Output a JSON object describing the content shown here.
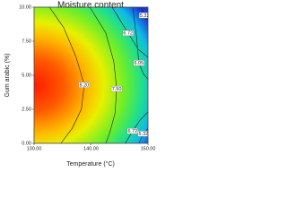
{
  "chart_data": {
    "type": "contour",
    "title": "Moisture content",
    "x_label": "Temperature (°C)",
    "y_label": "Gum arabic (%)",
    "xlim": [
      130,
      150
    ],
    "xticks": [
      {
        "value": 130,
        "label": "130.00"
      },
      {
        "value": 140,
        "label": "140.00"
      },
      {
        "value": 150,
        "label": "150.00"
      }
    ],
    "ylim": [
      0,
      10
    ],
    "yticks": [
      {
        "value": 0,
        "label": "0.00"
      },
      {
        "value": 2.5,
        "label": "2.50"
      },
      {
        "value": 5,
        "label": "5.00"
      },
      {
        "value": 7.5,
        "label": "7.50"
      },
      {
        "value": 10,
        "label": "10.00"
      }
    ],
    "contours": [
      {
        "level": 8.2,
        "label": "8.20",
        "x": [
          132.7,
          135.2,
          137.4,
          138.8,
          138.3,
          136.7,
          134.7
        ],
        "y": [
          10,
          8.5,
          6.3,
          4.3,
          2.5,
          1.1,
          0
        ]
      },
      {
        "level": 7.5,
        "label": "7.50",
        "x": [
          139.8,
          142.6,
          144.0,
          144.5,
          144.2,
          143.3,
          142.6
        ],
        "y": [
          10,
          8.1,
          6.0,
          4.0,
          2.2,
          0.8,
          0
        ]
      },
      {
        "level": 6.72,
        "label": "6.72",
        "x": [
          143.7,
          146.5,
          148.3,
          150
        ],
        "y": [
          10,
          8.1,
          6.9,
          6.3
        ]
      },
      {
        "level": 6.05,
        "label": "6.05",
        "x": [
          147.3,
          148.0,
          148.4,
          149.2,
          150
        ],
        "y": [
          10,
          7.8,
          5.9,
          5.1,
          4.7
        ]
      },
      {
        "level": 5.32,
        "label": "5.32",
        "x": [
          148.8,
          149.4,
          150
        ],
        "y": [
          10,
          9.4,
          9.0
        ]
      },
      {
        "level": 6.72,
        "label": "6.72",
        "x": [
          146.0,
          147.3,
          148.6,
          150
        ],
        "y": [
          0,
          0.9,
          1.7,
          2.3
        ]
      },
      {
        "level": 5.32,
        "label": "5.32",
        "x": [
          148.4,
          149.2,
          150
        ],
        "y": [
          0,
          0.7,
          1.1
        ]
      }
    ]
  }
}
